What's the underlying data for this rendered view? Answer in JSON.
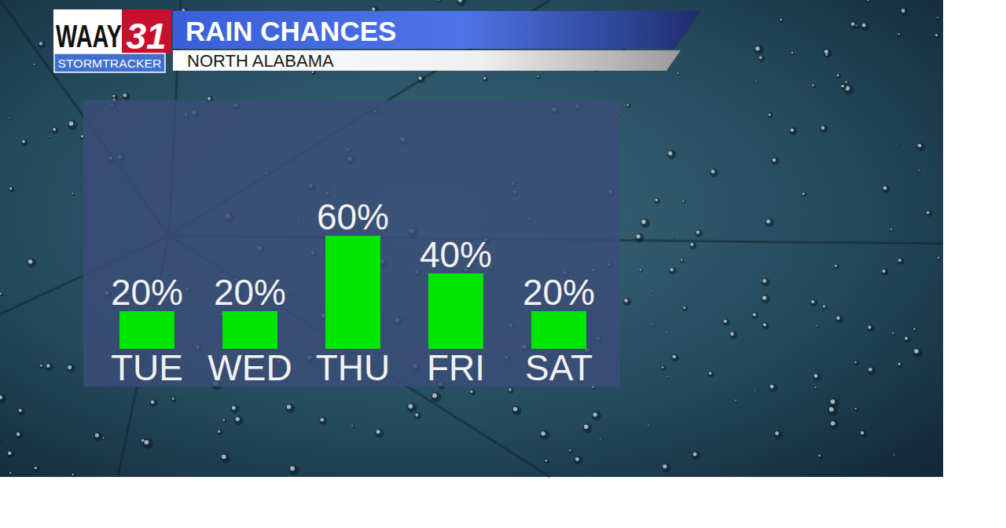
{
  "branding": {
    "station": "WAAY",
    "channel": "31",
    "tagline": "STORMTRACKER"
  },
  "chart_data": {
    "type": "bar",
    "title": "RAIN CHANCES",
    "subtitle": "NORTH ALABAMA",
    "categories": [
      "TUE",
      "WED",
      "THU",
      "FRI",
      "SAT"
    ],
    "values": [
      20,
      20,
      60,
      40,
      20
    ],
    "value_labels": [
      "20%",
      "20%",
      "60%",
      "40%",
      "20%"
    ],
    "color": "#00e600",
    "ylim": [
      0,
      100
    ],
    "data_labels": true,
    "tick_labels": "x",
    "grid": false
  }
}
